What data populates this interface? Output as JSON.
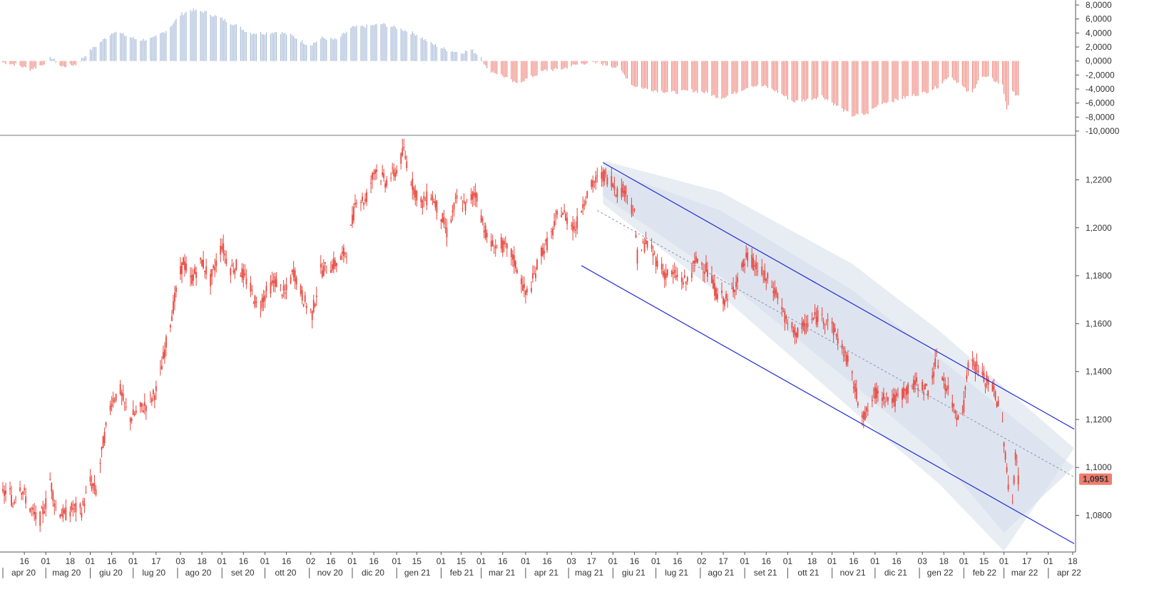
{
  "chart_data": [
    {
      "type": "bar",
      "panel": "oscillator",
      "ylim": [
        -10,
        8
      ],
      "y_ticks": [
        "8,0000",
        "6,0000",
        "4,0000",
        "2,0000",
        "0,0000",
        "-2,0000",
        "-4,0000",
        "-6,0000",
        "-8,0000",
        "-10,0000"
      ],
      "y_tick_values": [
        8,
        6,
        4,
        2,
        0,
        -2,
        -4,
        -6,
        -8,
        -10
      ],
      "keypoints": [
        [
          "2020-04-01",
          -0.2
        ],
        [
          "2020-04-10",
          -0.5
        ],
        [
          "2020-04-20",
          -1.2
        ],
        [
          "2020-04-28",
          -0.6
        ],
        [
          "2020-05-05",
          0.5
        ],
        [
          "2020-05-12",
          -0.8
        ],
        [
          "2020-05-22",
          -0.5
        ],
        [
          "2020-06-01",
          1.5
        ],
        [
          "2020-06-10",
          3.0
        ],
        [
          "2020-06-18",
          4.3
        ],
        [
          "2020-06-26",
          3.6
        ],
        [
          "2020-07-05",
          3.0
        ],
        [
          "2020-07-15",
          3.2
        ],
        [
          "2020-07-25",
          4.5
        ],
        [
          "2020-08-03",
          6.6
        ],
        [
          "2020-08-10",
          7.3
        ],
        [
          "2020-08-20",
          7.0
        ],
        [
          "2020-08-30",
          6.2
        ],
        [
          "2020-09-10",
          5.2
        ],
        [
          "2020-09-20",
          4.0
        ],
        [
          "2020-10-01",
          4.0
        ],
        [
          "2020-10-10",
          4.2
        ],
        [
          "2020-10-20",
          3.6
        ],
        [
          "2020-11-01",
          2.2
        ],
        [
          "2020-11-10",
          3.3
        ],
        [
          "2020-11-20",
          3.0
        ],
        [
          "2020-12-01",
          4.8
        ],
        [
          "2020-12-12",
          5.0
        ],
        [
          "2020-12-22",
          5.3
        ],
        [
          "2021-01-05",
          4.5
        ],
        [
          "2021-01-15",
          3.8
        ],
        [
          "2021-01-25",
          2.5
        ],
        [
          "2021-02-05",
          1.6
        ],
        [
          "2021-02-15",
          1.2
        ],
        [
          "2021-02-22",
          1.6
        ],
        [
          "2021-03-01",
          0.6
        ],
        [
          "2021-03-05",
          -1.2
        ],
        [
          "2021-03-15",
          -2.0
        ],
        [
          "2021-03-25",
          -3.2
        ],
        [
          "2021-04-05",
          -2.3
        ],
        [
          "2021-04-15",
          -1.3
        ],
        [
          "2021-04-25",
          -1.2
        ],
        [
          "2021-05-05",
          -0.6
        ],
        [
          "2021-05-15",
          -0.2
        ],
        [
          "2021-05-25",
          -0.4
        ],
        [
          "2021-06-05",
          -1.0
        ],
        [
          "2021-06-15",
          -3.5
        ],
        [
          "2021-06-25",
          -4.0
        ],
        [
          "2021-07-05",
          -4.3
        ],
        [
          "2021-07-15",
          -4.5
        ],
        [
          "2021-07-25",
          -4.2
        ],
        [
          "2021-08-05",
          -4.5
        ],
        [
          "2021-08-15",
          -5.3
        ],
        [
          "2021-08-25",
          -4.6
        ],
        [
          "2021-09-05",
          -3.5
        ],
        [
          "2021-09-15",
          -3.6
        ],
        [
          "2021-09-25",
          -4.5
        ],
        [
          "2021-10-05",
          -5.8
        ],
        [
          "2021-10-15",
          -5.5
        ],
        [
          "2021-10-25",
          -5.0
        ],
        [
          "2021-11-05",
          -6.5
        ],
        [
          "2021-11-15",
          -7.8
        ],
        [
          "2021-11-25",
          -7.6
        ],
        [
          "2021-12-05",
          -6.0
        ],
        [
          "2021-12-15",
          -5.6
        ],
        [
          "2021-12-25",
          -5.0
        ],
        [
          "2022-01-05",
          -4.5
        ],
        [
          "2022-01-15",
          -3.5
        ],
        [
          "2022-01-22",
          -2.0
        ],
        [
          "2022-02-01",
          -3.8
        ],
        [
          "2022-02-06",
          -5.0
        ],
        [
          "2022-02-12",
          -2.2
        ],
        [
          "2022-02-20",
          -2.5
        ],
        [
          "2022-02-28",
          -3.5
        ],
        [
          "2022-03-03",
          -6.8
        ],
        [
          "2022-03-07",
          -4.5
        ],
        [
          "2022-03-10",
          -4.8
        ]
      ]
    },
    {
      "type": "line",
      "panel": "price",
      "ylim": [
        1.0647,
        1.2347
      ],
      "y_ticks": [
        "1,2200",
        "1,2000",
        "1,1800",
        "1,1600",
        "1,1400",
        "1,1200",
        "1,1000",
        "1,0800"
      ],
      "y_tick_values": [
        1.22,
        1.2,
        1.18,
        1.16,
        1.14,
        1.12,
        1.1,
        1.08
      ],
      "last_price_label": "1,0951",
      "last_price_value": 1.0951,
      "price_keypoints": [
        [
          "2020-04-01",
          1.088
        ],
        [
          "2020-04-05",
          1.092
        ],
        [
          "2020-04-08",
          1.084
        ],
        [
          "2020-04-12",
          1.094
        ],
        [
          "2020-04-20",
          1.083
        ],
        [
          "2020-04-26",
          1.077
        ],
        [
          "2020-05-01",
          1.085
        ],
        [
          "2020-05-04",
          1.095
        ],
        [
          "2020-05-08",
          1.083
        ],
        [
          "2020-05-14",
          1.08
        ],
        [
          "2020-05-20",
          1.083
        ],
        [
          "2020-05-26",
          1.082
        ],
        [
          "2020-06-01",
          1.094
        ],
        [
          "2020-06-05",
          1.09
        ],
        [
          "2020-06-10",
          1.11
        ],
        [
          "2020-06-16",
          1.128
        ],
        [
          "2020-06-22",
          1.132
        ],
        [
          "2020-06-28",
          1.12
        ],
        [
          "2020-07-05",
          1.124
        ],
        [
          "2020-07-12",
          1.127
        ],
        [
          "2020-07-18",
          1.133
        ],
        [
          "2020-07-25",
          1.155
        ],
        [
          "2020-08-01",
          1.176
        ],
        [
          "2020-08-05",
          1.186
        ],
        [
          "2020-08-10",
          1.178
        ],
        [
          "2020-08-18",
          1.186
        ],
        [
          "2020-08-24",
          1.178
        ],
        [
          "2020-09-01",
          1.193
        ],
        [
          "2020-09-06",
          1.183
        ],
        [
          "2020-09-12",
          1.184
        ],
        [
          "2020-09-20",
          1.176
        ],
        [
          "2020-09-26",
          1.166
        ],
        [
          "2020-10-01",
          1.172
        ],
        [
          "2020-10-08",
          1.178
        ],
        [
          "2020-10-15",
          1.172
        ],
        [
          "2020-10-21",
          1.182
        ],
        [
          "2020-10-28",
          1.17
        ],
        [
          "2020-11-03",
          1.164
        ],
        [
          "2020-11-09",
          1.182
        ],
        [
          "2020-11-16",
          1.184
        ],
        [
          "2020-11-22",
          1.186
        ],
        [
          "2020-11-28",
          1.192
        ],
        [
          "2020-12-04",
          1.213
        ],
        [
          "2020-12-10",
          1.211
        ],
        [
          "2020-12-17",
          1.225
        ],
        [
          "2020-12-24",
          1.219
        ],
        [
          "2021-01-01",
          1.224
        ],
        [
          "2021-01-06",
          1.232
        ],
        [
          "2021-01-12",
          1.218
        ],
        [
          "2021-01-18",
          1.21
        ],
        [
          "2021-01-25",
          1.214
        ],
        [
          "2021-02-01",
          1.205
        ],
        [
          "2021-02-05",
          1.198
        ],
        [
          "2021-02-12",
          1.212
        ],
        [
          "2021-02-18",
          1.209
        ],
        [
          "2021-02-25",
          1.215
        ],
        [
          "2021-03-01",
          1.205
        ],
        [
          "2021-03-06",
          1.194
        ],
        [
          "2021-03-10",
          1.192
        ],
        [
          "2021-03-15",
          1.193
        ],
        [
          "2021-03-22",
          1.189
        ],
        [
          "2021-03-28",
          1.18
        ],
        [
          "2021-04-01",
          1.172
        ],
        [
          "2021-04-05",
          1.176
        ],
        [
          "2021-04-12",
          1.19
        ],
        [
          "2021-04-18",
          1.195
        ],
        [
          "2021-04-25",
          1.208
        ],
        [
          "2021-05-01",
          1.203
        ],
        [
          "2021-05-06",
          1.2
        ],
        [
          "2021-05-12",
          1.212
        ],
        [
          "2021-05-19",
          1.219
        ],
        [
          "2021-05-25",
          1.222
        ],
        [
          "2021-05-31",
          1.22
        ],
        [
          "2021-06-04",
          1.215
        ],
        [
          "2021-06-10",
          1.216
        ],
        [
          "2021-06-16",
          1.205
        ],
        [
          "2021-06-18",
          1.188
        ],
        [
          "2021-06-24",
          1.194
        ],
        [
          "2021-07-01",
          1.187
        ],
        [
          "2021-07-07",
          1.181
        ],
        [
          "2021-07-15",
          1.18
        ],
        [
          "2021-07-22",
          1.177
        ],
        [
          "2021-07-30",
          1.187
        ],
        [
          "2021-08-05",
          1.183
        ],
        [
          "2021-08-12",
          1.173
        ],
        [
          "2021-08-20",
          1.169
        ],
        [
          "2021-08-27",
          1.179
        ],
        [
          "2021-09-03",
          1.188
        ],
        [
          "2021-09-10",
          1.183
        ],
        [
          "2021-09-17",
          1.178
        ],
        [
          "2021-09-24",
          1.172
        ],
        [
          "2021-10-01",
          1.159
        ],
        [
          "2021-10-08",
          1.156
        ],
        [
          "2021-10-15",
          1.16
        ],
        [
          "2021-10-22",
          1.163
        ],
        [
          "2021-10-29",
          1.162
        ],
        [
          "2021-11-05",
          1.154
        ],
        [
          "2021-11-12",
          1.144
        ],
        [
          "2021-11-19",
          1.128
        ],
        [
          "2021-11-24",
          1.121
        ],
        [
          "2021-12-01",
          1.131
        ],
        [
          "2021-12-08",
          1.13
        ],
        [
          "2021-12-15",
          1.128
        ],
        [
          "2021-12-22",
          1.132
        ],
        [
          "2021-12-31",
          1.135
        ],
        [
          "2022-01-07",
          1.132
        ],
        [
          "2022-01-13",
          1.145
        ],
        [
          "2022-01-20",
          1.133
        ],
        [
          "2022-01-27",
          1.122
        ],
        [
          "2022-02-01",
          1.126
        ],
        [
          "2022-02-04",
          1.144
        ],
        [
          "2022-02-10",
          1.142
        ],
        [
          "2022-02-16",
          1.136
        ],
        [
          "2022-02-22",
          1.133
        ],
        [
          "2022-02-28",
          1.118
        ],
        [
          "2022-03-04",
          1.092
        ],
        [
          "2022-03-07",
          1.086
        ],
        [
          "2022-03-09",
          1.106
        ],
        [
          "2022-03-11",
          1.095
        ]
      ],
      "trend_channel": {
        "upper": [
          [
            "2021-05-25",
            1.2272
          ],
          [
            "2022-04-19",
            1.116
          ]
        ],
        "lower": [
          [
            "2021-05-10",
            1.1842
          ],
          [
            "2022-04-19",
            1.0682
          ]
        ],
        "median": [
          [
            "2021-05-21",
            1.2072
          ],
          [
            "2022-04-19",
            1.096
          ]
        ]
      },
      "regression_band": {
        "upper": [
          [
            "2021-05-25",
            1.228
          ],
          [
            "2021-08-15",
            1.215
          ],
          [
            "2021-11-15",
            1.185
          ],
          [
            "2022-01-15",
            1.157
          ],
          [
            "2022-04-19",
            1.108
          ]
        ],
        "lower": [
          [
            "2021-05-25",
            1.21
          ],
          [
            "2021-08-15",
            1.172
          ],
          [
            "2021-11-15",
            1.124
          ],
          [
            "2022-01-15",
            1.093
          ],
          [
            "2022-03-01",
            1.065
          ]
        ]
      }
    }
  ],
  "x_axis": {
    "ticks": [
      {
        "date": "2020-04-16",
        "label": "16"
      },
      {
        "date": "2020-05-01",
        "label": "01"
      },
      {
        "date": "2020-05-18",
        "label": "18"
      },
      {
        "date": "2020-06-01",
        "label": "01"
      },
      {
        "date": "2020-06-16",
        "label": "16"
      },
      {
        "date": "2020-07-01",
        "label": "01"
      },
      {
        "date": "2020-07-17",
        "label": "17"
      },
      {
        "date": "2020-08-03",
        "label": "03"
      },
      {
        "date": "2020-08-18",
        "label": "18"
      },
      {
        "date": "2020-09-01",
        "label": "01"
      },
      {
        "date": "2020-09-16",
        "label": "16"
      },
      {
        "date": "2020-10-01",
        "label": "01"
      },
      {
        "date": "2020-10-16",
        "label": "16"
      },
      {
        "date": "2020-11-02",
        "label": "02"
      },
      {
        "date": "2020-11-16",
        "label": "16"
      },
      {
        "date": "2020-12-01",
        "label": "01"
      },
      {
        "date": "2020-12-16",
        "label": "16"
      },
      {
        "date": "2021-01-01",
        "label": "01"
      },
      {
        "date": "2021-01-15",
        "label": "15"
      },
      {
        "date": "2021-02-01",
        "label": "01"
      },
      {
        "date": "2021-02-15",
        "label": "15"
      },
      {
        "date": "2021-03-01",
        "label": "01"
      },
      {
        "date": "2021-03-16",
        "label": "16"
      },
      {
        "date": "2021-04-01",
        "label": "01"
      },
      {
        "date": "2021-04-16",
        "label": "16"
      },
      {
        "date": "2021-05-03",
        "label": "03"
      },
      {
        "date": "2021-05-17",
        "label": "17"
      },
      {
        "date": "2021-06-01",
        "label": "01"
      },
      {
        "date": "2021-06-16",
        "label": "16"
      },
      {
        "date": "2021-07-01",
        "label": "01"
      },
      {
        "date": "2021-07-16",
        "label": "16"
      },
      {
        "date": "2021-08-02",
        "label": "02"
      },
      {
        "date": "2021-08-17",
        "label": "17"
      },
      {
        "date": "2021-09-01",
        "label": "01"
      },
      {
        "date": "2021-09-16",
        "label": "16"
      },
      {
        "date": "2021-10-01",
        "label": "01"
      },
      {
        "date": "2021-10-18",
        "label": "18"
      },
      {
        "date": "2021-11-01",
        "label": "01"
      },
      {
        "date": "2021-11-16",
        "label": "16"
      },
      {
        "date": "2021-12-01",
        "label": "01"
      },
      {
        "date": "2021-12-16",
        "label": "16"
      },
      {
        "date": "2022-01-03",
        "label": "03"
      },
      {
        "date": "2022-01-18",
        "label": "18"
      },
      {
        "date": "2022-02-01",
        "label": "01"
      },
      {
        "date": "2022-02-15",
        "label": "15"
      },
      {
        "date": "2022-03-01",
        "label": "01"
      },
      {
        "date": "2022-03-17",
        "label": "17"
      },
      {
        "date": "2022-04-01",
        "label": "01"
      },
      {
        "date": "2022-04-18",
        "label": "18"
      }
    ],
    "months": [
      {
        "date": "2020-04-01",
        "label": "apr 20"
      },
      {
        "date": "2020-05-01",
        "label": "mag 20"
      },
      {
        "date": "2020-06-01",
        "label": "giu 20"
      },
      {
        "date": "2020-07-01",
        "label": "lug 20"
      },
      {
        "date": "2020-08-01",
        "label": "ago 20"
      },
      {
        "date": "2020-09-01",
        "label": "set 20"
      },
      {
        "date": "2020-10-01",
        "label": "ott 20"
      },
      {
        "date": "2020-11-01",
        "label": "nov 20"
      },
      {
        "date": "2020-12-01",
        "label": "dic 20"
      },
      {
        "date": "2021-01-01",
        "label": "gen 21"
      },
      {
        "date": "2021-02-01",
        "label": "feb 21"
      },
      {
        "date": "2021-03-01",
        "label": "mar 21"
      },
      {
        "date": "2021-04-01",
        "label": "apr 21"
      },
      {
        "date": "2021-05-01",
        "label": "mag 21"
      },
      {
        "date": "2021-06-01",
        "label": "giu 21"
      },
      {
        "date": "2021-07-01",
        "label": "lug 21"
      },
      {
        "date": "2021-08-01",
        "label": "ago 21"
      },
      {
        "date": "2021-09-01",
        "label": "set 21"
      },
      {
        "date": "2021-10-01",
        "label": "ott 21"
      },
      {
        "date": "2021-11-01",
        "label": "nov 21"
      },
      {
        "date": "2021-12-01",
        "label": "dic 21"
      },
      {
        "date": "2022-01-01",
        "label": "gen 22"
      },
      {
        "date": "2022-02-01",
        "label": "feb 22"
      },
      {
        "date": "2022-03-01",
        "label": "mar 22"
      },
      {
        "date": "2022-04-01",
        "label": "apr 22"
      }
    ]
  },
  "colors": {
    "candle": "#e8453c",
    "bar_positive": "#a9bbd8",
    "bar_negative": "#ef8a80",
    "channel_line": "#1f2bd6",
    "band_fill": "#d6deeb",
    "median_line": "#8a96a8",
    "last_price_bg": "#f07d6e"
  }
}
